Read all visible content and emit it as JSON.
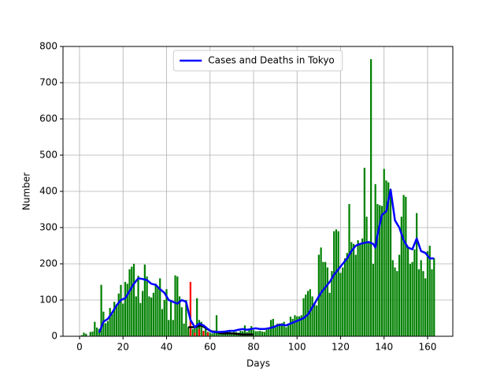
{
  "chart_data": {
    "type": "bar",
    "xlabel": "Days",
    "ylabel": "Number",
    "xlim": [
      -7.6,
      171.6
    ],
    "ylim": [
      0,
      800
    ],
    "xticks": [
      0,
      20,
      40,
      60,
      80,
      100,
      120,
      140,
      160
    ],
    "yticks": [
      0,
      100,
      200,
      300,
      400,
      500,
      600,
      700,
      800
    ],
    "grid": true,
    "legend": "upper center",
    "series": [
      {
        "type": "bar",
        "color": "#008000",
        "x": [
          0,
          1,
          2,
          3,
          4,
          5,
          6,
          7,
          8,
          9,
          10,
          11,
          12,
          13,
          14,
          15,
          16,
          17,
          18,
          19,
          20,
          21,
          22,
          23,
          24,
          25,
          26,
          27,
          28,
          29,
          30,
          31,
          32,
          33,
          34,
          35,
          36,
          37,
          38,
          39,
          40,
          41,
          42,
          43,
          44,
          45,
          46,
          47,
          48,
          49,
          50,
          51,
          52,
          53,
          54,
          55,
          56,
          57,
          58,
          59,
          60,
          61,
          62,
          63,
          64,
          65,
          66,
          67,
          68,
          69,
          70,
          71,
          72,
          73,
          74,
          75,
          76,
          77,
          78,
          79,
          80,
          81,
          82,
          83,
          84,
          85,
          86,
          87,
          88,
          89,
          90,
          91,
          92,
          93,
          94,
          95,
          96,
          97,
          98,
          99,
          100,
          101,
          102,
          103,
          104,
          105,
          106,
          107,
          108,
          109,
          110,
          111,
          112,
          113,
          114,
          115,
          116,
          117,
          118,
          119,
          120,
          121,
          122,
          123,
          124,
          125,
          126,
          127,
          128,
          129,
          130,
          131,
          132,
          133,
          134,
          135,
          136,
          137,
          138,
          139,
          140,
          141,
          142,
          143,
          144,
          145,
          146,
          147,
          148,
          149,
          150,
          151,
          152,
          153,
          154,
          155,
          156,
          157,
          158,
          159,
          160,
          161,
          162,
          163
        ],
        "values": [
          0,
          3,
          10,
          7,
          0,
          12,
          13,
          40,
          24,
          20,
          142,
          68,
          36,
          42,
          78,
          62,
          95,
          88,
          118,
          142,
          90,
          150,
          145,
          185,
          192,
          200,
          110,
          167,
          92,
          125,
          198,
          165,
          110,
          107,
          120,
          145,
          135,
          160,
          75,
          100,
          130,
          45,
          97,
          45,
          168,
          165,
          110,
          80,
          35,
          100,
          25,
          12,
          20,
          22,
          105,
          45,
          40,
          15,
          20,
          12,
          10,
          8,
          16,
          58,
          10,
          11,
          15,
          12,
          12,
          14,
          8,
          12,
          12,
          10,
          15,
          14,
          30,
          12,
          20,
          28,
          17,
          14,
          14,
          15,
          13,
          12,
          18,
          20,
          45,
          48,
          25,
          35,
          35,
          36,
          40,
          25,
          30,
          54,
          48,
          58,
          55,
          55,
          58,
          105,
          115,
          125,
          130,
          110,
          90,
          85,
          225,
          245,
          205,
          205,
          190,
          120,
          180,
          290,
          295,
          290,
          175,
          190,
          215,
          230,
          365,
          260,
          255,
          225,
          265,
          255,
          270,
          465,
          330,
          258,
          765,
          200,
          420,
          365,
          362,
          360,
          462,
          430,
          425,
          390,
          210,
          190,
          180,
          225,
          330,
          390,
          385,
          245,
          200,
          205,
          240,
          340,
          185,
          210,
          180,
          160,
          235,
          250,
          185,
          215
        ]
      },
      {
        "type": "bar",
        "color": "#ff0000",
        "x": [
          51,
          53,
          55,
          57,
          59
        ],
        "values": [
          150,
          10,
          20,
          15,
          10
        ]
      },
      {
        "type": "line",
        "color": "#000000",
        "x": [
          50,
          53,
          56,
          60,
          65,
          70,
          75,
          80
        ],
        "values": [
          25,
          25,
          30,
          15,
          8,
          8,
          5,
          5
        ]
      },
      {
        "type": "line",
        "name": "Cases and Deaths in Tokyo",
        "color": "#0000ff",
        "x": [
          9,
          11,
          13,
          15,
          17,
          19,
          21,
          23,
          25,
          27,
          29,
          31,
          33,
          35,
          37,
          39,
          41,
          43,
          45,
          47,
          49,
          51,
          53,
          55,
          57,
          59,
          61,
          63,
          65,
          67,
          69,
          71,
          73,
          75,
          77,
          79,
          81,
          83,
          85,
          87,
          89,
          91,
          93,
          95,
          97,
          99,
          101,
          103,
          105,
          107,
          109,
          111,
          113,
          115,
          117,
          119,
          121,
          123,
          125,
          127,
          129,
          131,
          133,
          135,
          136,
          137,
          139,
          141,
          143,
          145,
          147,
          149,
          151,
          153,
          155,
          157,
          159,
          161,
          163
        ],
        "values": [
          10,
          40,
          48,
          65,
          85,
          100,
          105,
          125,
          145,
          160,
          158,
          155,
          145,
          142,
          130,
          120,
          100,
          95,
          90,
          100,
          95,
          45,
          25,
          35,
          30,
          20,
          12,
          12,
          12,
          13,
          15,
          15,
          18,
          20,
          18,
          20,
          22,
          20,
          20,
          22,
          25,
          30,
          32,
          30,
          35,
          40,
          45,
          50,
          60,
          80,
          100,
          120,
          135,
          150,
          170,
          185,
          200,
          215,
          235,
          250,
          255,
          258,
          260,
          255,
          245,
          280,
          335,
          345,
          405,
          320,
          300,
          265,
          245,
          240,
          270,
          235,
          230,
          215,
          215
        ]
      }
    ]
  }
}
